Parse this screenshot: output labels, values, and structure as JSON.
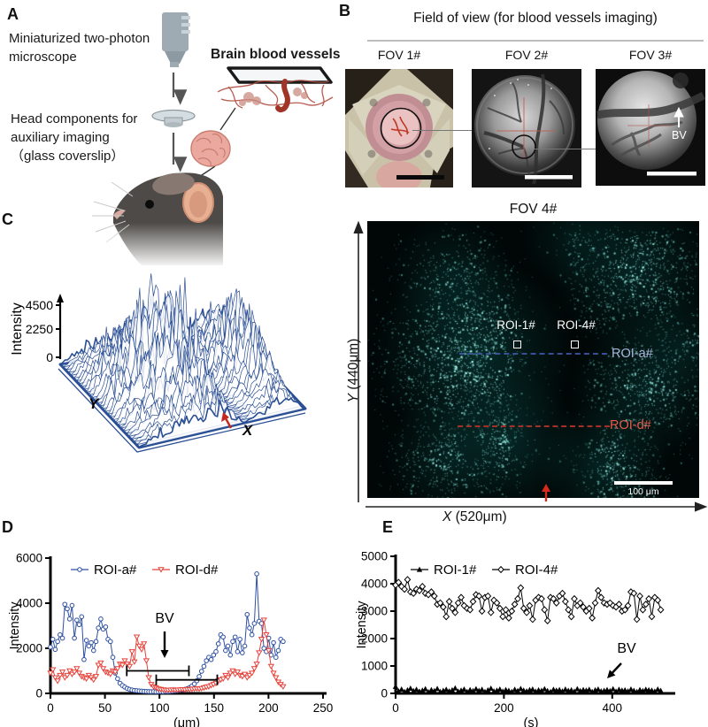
{
  "panel_labels": {
    "a": "A",
    "b": "B",
    "c": "C",
    "d": "D",
    "e": "E"
  },
  "panel_a": {
    "microscope_caption_1": "Miniaturized two-photon",
    "microscope_caption_2": "microscope",
    "vessels_title": "Brain blood vessels",
    "head_caption_1": "Head components for",
    "head_caption_2": "auxiliary imaging",
    "head_caption_3": "（glass coverslip）"
  },
  "panel_b": {
    "title": "Field of view (for blood vessels imaging)",
    "fovs": [
      "FOV 1#",
      "FOV 2#",
      "FOV 3#"
    ],
    "fov3_bv_label": "BV",
    "fov4": {
      "title": "FOV 4#",
      "roi1_label": "ROI-1#",
      "roi4_label": "ROI-4#",
      "roia_label": "ROI-a#",
      "roid_label": "ROI-d#",
      "scale_bar_label": "100 μm",
      "x_axis_prefix": "X",
      "x_axis_rest": " (520μm)",
      "y_axis_prefix": "Y",
      "y_axis_rest": " (440μm)",
      "colors": {
        "roia_text": "#a9b7da",
        "roid_text": "#e85a4c",
        "dash_blue": "#3d57a6",
        "dash_red": "#a33127",
        "image_cyan": "#2fb9ae",
        "arrow_red": "#d9281c"
      }
    }
  },
  "chart_data": [
    {
      "id": "panelC",
      "type": "surface",
      "zlabel": "Intensity",
      "zticks": [
        0,
        2250,
        4500
      ],
      "xlabel": "X",
      "ylabel": "Y",
      "wire_color": "#2b4f94",
      "base_fill": "#e9edf6",
      "arrow_color": "#c4281e",
      "note": "3D intensity landscape of FOV 4#, valley marks blood vessel (red arrow on X edge)"
    },
    {
      "id": "panelD",
      "type": "line",
      "title": "",
      "xlabel": "(μm)",
      "ylabel": "Intensity",
      "xlim": [
        0,
        250
      ],
      "ylim": [
        0,
        6000
      ],
      "xticks": [
        0,
        50,
        100,
        150,
        200,
        250
      ],
      "yticks": [
        0,
        2000,
        4000,
        6000
      ],
      "annotation": "BV",
      "x_start": 0,
      "x_step": 2.2,
      "brackets": [
        {
          "x1": 70,
          "x2": 127,
          "y": 1000
        },
        {
          "x1": 97,
          "x2": 153,
          "y": 600
        }
      ],
      "series": [
        {
          "name": "ROI-a#",
          "color": "#2d4fa2",
          "marker": "circle-open",
          "values": [
            2050,
            2400,
            1950,
            2300,
            2600,
            2450,
            3950,
            3750,
            3300,
            3900,
            2450,
            3250,
            3050,
            3400,
            1500,
            2350,
            2100,
            2250,
            1900,
            2300,
            2900,
            3300,
            2850,
            2950,
            2400,
            2300,
            1600,
            900,
            650,
            450,
            350,
            280,
            220,
            180,
            150,
            130,
            120,
            110,
            100,
            90,
            85,
            80,
            75,
            80,
            70,
            75,
            80,
            75,
            85,
            80,
            90,
            100,
            110,
            120,
            140,
            160,
            180,
            210,
            260,
            330,
            420,
            560,
            750,
            980,
            1200,
            1450,
            1600,
            1500,
            1700,
            1850,
            2200,
            2600,
            2500,
            1900,
            2100,
            1700,
            2300,
            2500,
            1850,
            2400,
            1800,
            2100,
            3500,
            2900,
            2600,
            3100,
            5300,
            3200,
            3100,
            2000,
            1850,
            2450,
            1700,
            2250,
            1600,
            1900,
            2400,
            2300
          ]
        },
        {
          "name": "ROI-d#",
          "color": "#e6423a",
          "marker": "triangle-down-open",
          "values": [
            900,
            1050,
            700,
            550,
            800,
            950,
            700,
            800,
            1000,
            850,
            950,
            1100,
            900,
            750,
            700,
            650,
            800,
            700,
            600,
            750,
            1250,
            1350,
            1100,
            950,
            900,
            850,
            1000,
            950,
            1100,
            1300,
            1250,
            1450,
            1300,
            1200,
            1850,
            1400,
            2500,
            2100,
            1950,
            2200,
            1450,
            700,
            400,
            300,
            250,
            200,
            180,
            160,
            150,
            140,
            150,
            160,
            140,
            150,
            160,
            170,
            160,
            180,
            170,
            190,
            200,
            210,
            200,
            220,
            250,
            280,
            300,
            350,
            400,
            450,
            550,
            600,
            650,
            800,
            700,
            900,
            1000,
            850,
            950,
            800,
            750,
            850,
            700,
            800,
            900,
            1100,
            1300,
            1800,
            2400,
            3250,
            2600,
            1900,
            1200,
            900,
            700,
            500,
            400,
            300
          ]
        }
      ]
    },
    {
      "id": "panelE",
      "type": "line",
      "title": "",
      "xlabel": "(s)",
      "ylabel": "Intensity",
      "xlim": [
        0,
        500
      ],
      "ylim": [
        0,
        5000
      ],
      "xticks": [
        0,
        200,
        400
      ],
      "yticks": [
        0,
        1000,
        2000,
        3000,
        4000,
        5000
      ],
      "annotation": "BV",
      "x_start": 0,
      "x_step": 5.5,
      "brackets": [],
      "series": [
        {
          "name": "ROI-1#",
          "color": "#000000",
          "marker": "triangle-filled",
          "values": [
            250,
            80,
            150,
            60,
            120,
            180,
            90,
            140,
            70,
            110,
            160,
            50,
            130,
            90,
            170,
            60,
            100,
            140,
            80,
            120,
            190,
            70,
            110,
            150,
            60,
            130,
            90,
            160,
            100,
            140,
            60,
            120,
            180,
            80,
            110,
            150,
            70,
            130,
            100,
            60,
            140,
            90,
            170,
            110,
            80,
            130,
            150,
            70,
            120,
            100,
            160,
            90,
            60,
            140,
            110,
            130,
            80,
            150,
            100,
            120,
            70,
            160,
            90,
            130,
            110,
            140,
            60,
            120,
            150,
            80,
            100,
            130,
            90,
            160,
            70,
            140,
            110,
            120,
            80,
            150,
            100,
            60,
            130,
            90,
            140,
            120,
            110,
            70,
            150,
            100
          ]
        },
        {
          "name": "ROI-4#",
          "color": "#000000",
          "marker": "diamond-open",
          "values": [
            3950,
            4050,
            3900,
            3800,
            4150,
            3700,
            3650,
            3800,
            3750,
            3900,
            3650,
            3600,
            3700,
            3550,
            3250,
            3300,
            3150,
            2800,
            3350,
            3100,
            2950,
            3300,
            3500,
            3200,
            3100,
            3050,
            3350,
            3600,
            3550,
            3000,
            3500,
            3550,
            2950,
            3400,
            3300,
            3100,
            2800,
            3050,
            2750,
            3000,
            3250,
            3450,
            3850,
            3100,
            2950,
            3200,
            2700,
            3400,
            3500,
            3450,
            3050,
            2650,
            3500,
            3450,
            3300,
            3550,
            3650,
            3350,
            3050,
            2800,
            3450,
            3200,
            3300,
            3150,
            3000,
            3100,
            2750,
            3300,
            3750,
            3500,
            3300,
            3250,
            3300,
            3200,
            3150,
            3250,
            3000,
            3050,
            3200,
            3700,
            3650,
            2700,
            3550,
            3050,
            3250,
            3450,
            2800,
            3500,
            3400,
            3050
          ]
        }
      ]
    }
  ]
}
